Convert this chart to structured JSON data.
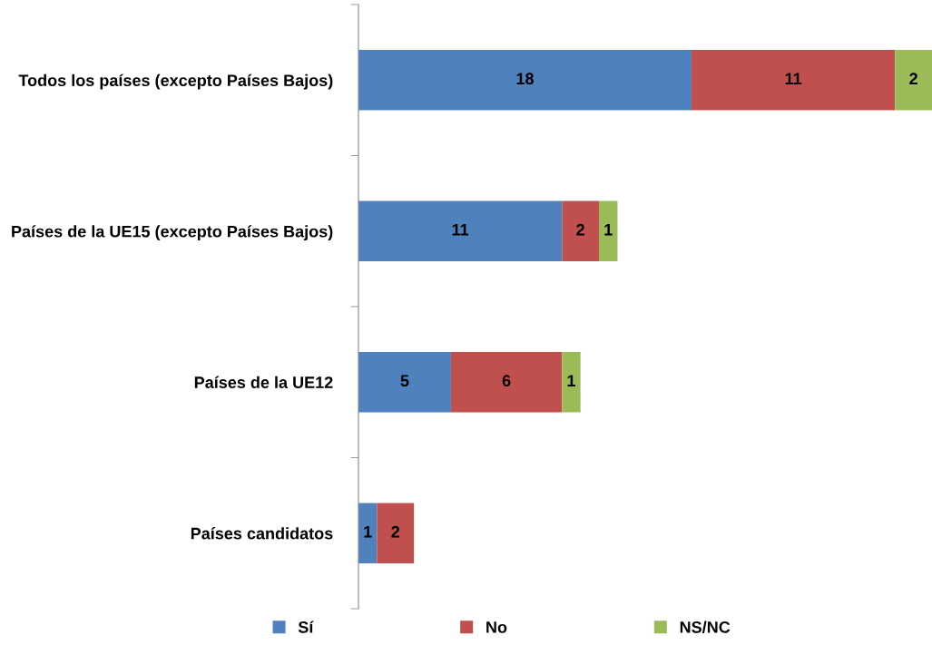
{
  "chart_data": {
    "type": "bar",
    "orientation": "horizontal",
    "stacked": true,
    "categories": [
      "Todos los países (excepto Países Bajos)",
      "Países de la UE15 (excepto Países Bajos)",
      "Países de la UE12",
      "Países candidatos"
    ],
    "series": [
      {
        "name": "Sí",
        "color": "#4f81bd",
        "values": [
          18,
          11,
          5,
          1
        ]
      },
      {
        "name": "No",
        "color": "#c0504d",
        "values": [
          11,
          2,
          6,
          2
        ]
      },
      {
        "name": "NS/NC",
        "color": "#9bbb59",
        "values": [
          2,
          1,
          1,
          null
        ]
      }
    ],
    "xlim": [
      0,
      31
    ],
    "data_labels": true,
    "grid": false,
    "legend": "bottom"
  }
}
